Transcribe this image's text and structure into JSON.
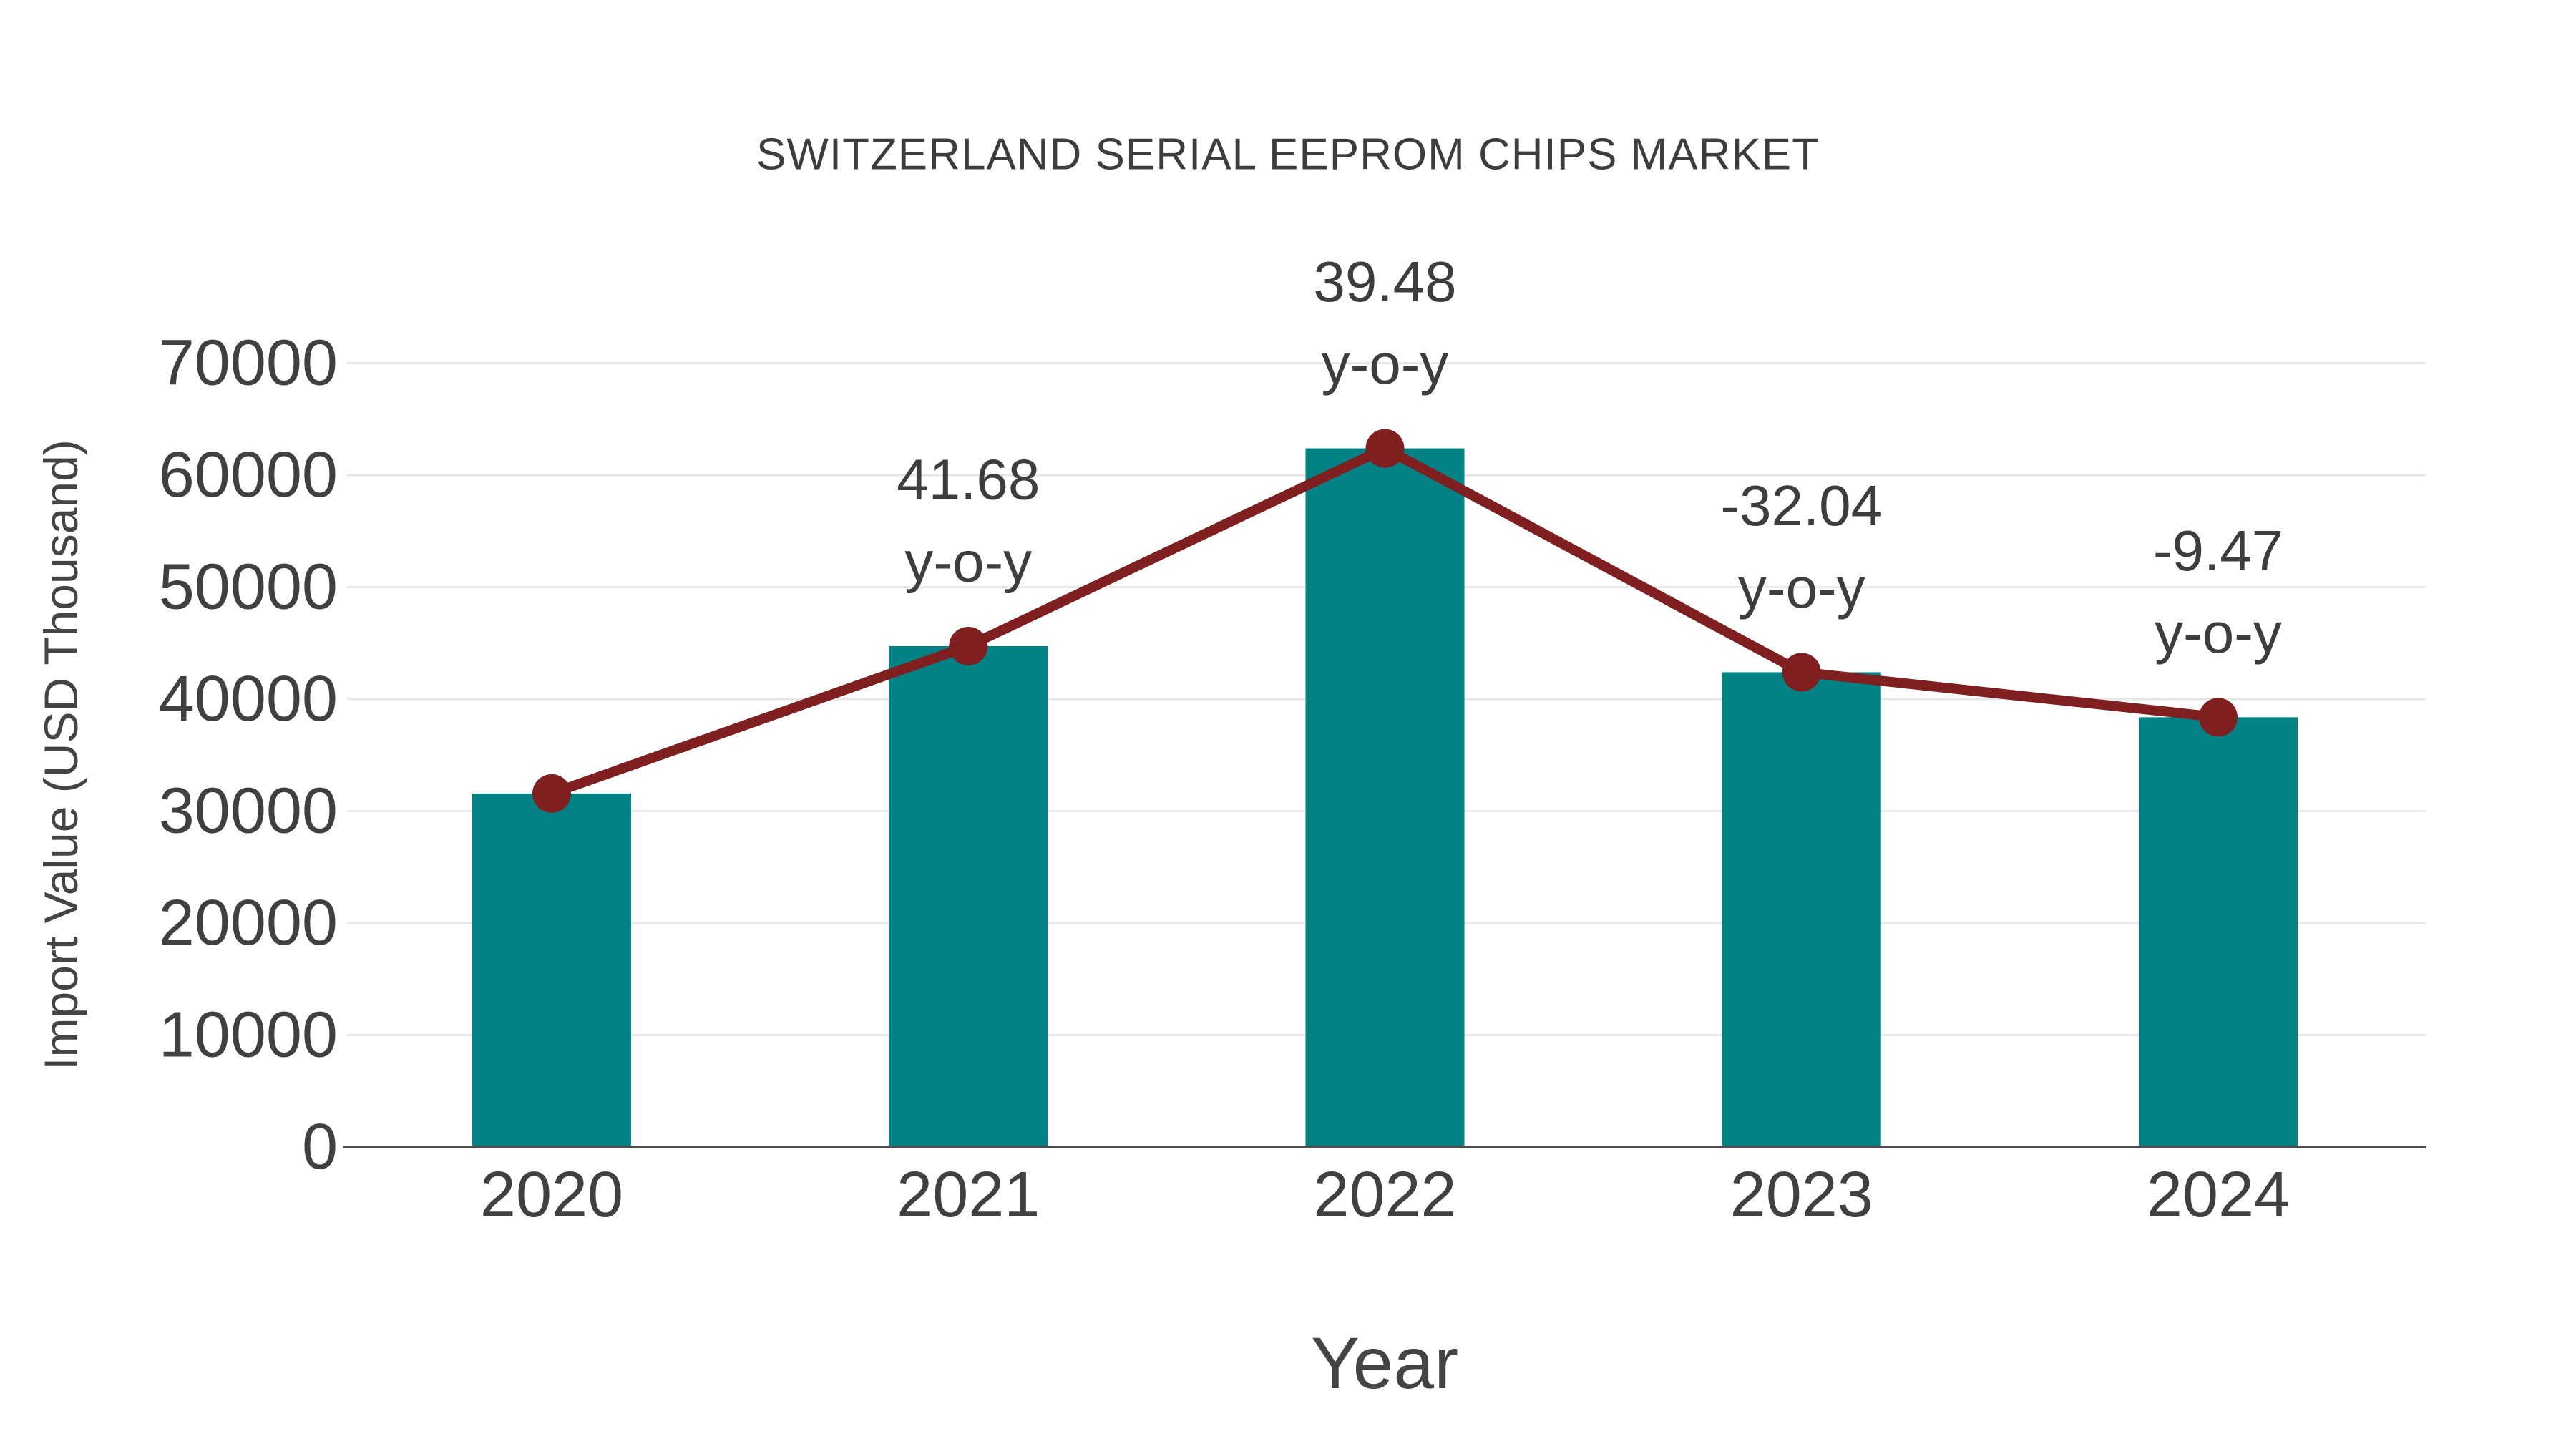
{
  "title": "SWITZERLAND SERIAL EEPROM CHIPS MARKET",
  "colors": {
    "bar": "#038286",
    "line": "#7f1f1f",
    "marker": "#7f1f1f",
    "grid": "#e7e7e7",
    "axis": "#4d4d4d",
    "text": "#3d3d3d"
  },
  "chart_data": {
    "type": "bar",
    "title": "SWITZERLAND SERIAL EEPROM CHIPS MARKET",
    "xlabel": "Year",
    "ylabel": "Import Value (USD Thousand)",
    "categories": [
      "2020",
      "2021",
      "2022",
      "2023",
      "2024"
    ],
    "series": [
      {
        "name": "Import Value (USD Thousand)",
        "type": "bar",
        "values": [
          31570,
          44730,
          62390,
          42400,
          38380
        ]
      },
      {
        "name": "y-o-y growth (%)",
        "type": "line",
        "values": [
          null,
          41.68,
          39.48,
          -32.04,
          -9.47
        ]
      }
    ],
    "annotations": [
      {
        "category": "2021",
        "line1": "41.68",
        "line2": "y-o-y"
      },
      {
        "category": "2022",
        "line1": "39.48",
        "line2": "y-o-y"
      },
      {
        "category": "2023",
        "line1": "-32.04",
        "line2": "y-o-y"
      },
      {
        "category": "2024",
        "line1": "-9.47",
        "line2": "y-o-y"
      }
    ],
    "ylim": [
      0,
      70000
    ],
    "yticks": [
      0,
      10000,
      20000,
      30000,
      40000,
      50000,
      60000,
      70000
    ],
    "grid": true,
    "legend": "none"
  }
}
